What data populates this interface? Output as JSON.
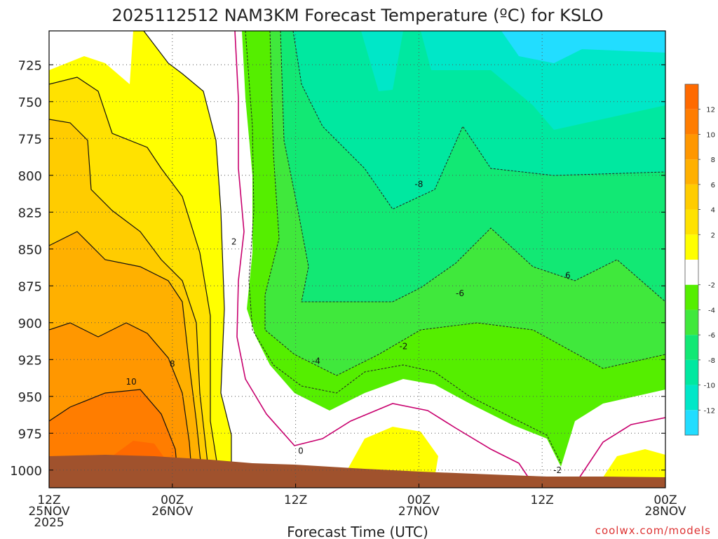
{
  "chart_data": {
    "type": "heatmap",
    "title": "2025112512 NAM3KM Forecast Temperature (ºC) for KSLO",
    "xlabel": "Forecast Time (UTC)",
    "ylabel": "",
    "y_scale": "pressure (inverted)",
    "ylim": [
      1012,
      702
    ],
    "y_ticks": [
      {
        "value": 725,
        "label": "725"
      },
      {
        "value": 750,
        "label": "750"
      },
      {
        "value": 775,
        "label": "775"
      },
      {
        "value": 800,
        "label": "800"
      },
      {
        "value": 825,
        "label": "825"
      },
      {
        "value": 850,
        "label": "850"
      },
      {
        "value": 875,
        "label": "875"
      },
      {
        "value": 900,
        "label": "900"
      },
      {
        "value": 925,
        "label": "925"
      },
      {
        "value": 950,
        "label": "950"
      },
      {
        "value": 975,
        "label": "975"
      },
      {
        "value": 1000,
        "label": "1000"
      }
    ],
    "x_ticks": [
      {
        "time": "2025-11-25T12:00Z",
        "line1": "12Z",
        "line2": "25NOV",
        "line3": "2025"
      },
      {
        "time": "2025-11-26T00:00Z",
        "line1": "00Z",
        "line2": "26NOV",
        "line3": ""
      },
      {
        "time": "2025-11-26T12:00Z",
        "line1": "12Z",
        "line2": "",
        "line3": ""
      },
      {
        "time": "2025-11-27T00:00Z",
        "line1": "00Z",
        "line2": "27NOV",
        "line3": ""
      },
      {
        "time": "2025-11-27T12:00Z",
        "line1": "12Z",
        "line2": "",
        "line3": ""
      },
      {
        "time": "2025-11-28T00:00Z",
        "line1": "00Z",
        "line2": "28NOV",
        "line3": ""
      }
    ],
    "grid": true,
    "colorbar": {
      "placement": "right",
      "colors": [
        "#22ddff",
        "#00e7c8",
        "#00e8a0",
        "#12e874",
        "#40e83c",
        "#55ee00",
        "#ffffff",
        "#ffff00",
        "#ffe200",
        "#ffcc00",
        "#ffb000",
        "#ff9700",
        "#ff7d00",
        "#ff6a00"
      ],
      "labels": [
        "-12",
        "-10",
        "-8",
        "-6",
        "-4",
        "-2",
        "2",
        "4",
        "6",
        "8",
        "10",
        "12"
      ]
    },
    "contour_labels": [
      {
        "text": "10",
        "time": "2025-11-25T20:00Z",
        "p": 940
      },
      {
        "text": "8",
        "time": "2025-11-26T00:00Z",
        "p": 928
      },
      {
        "text": "2",
        "time": "2025-11-26T06:00Z",
        "p": 845
      },
      {
        "text": "0",
        "time": "2025-11-26T12:30Z",
        "p": 987
      },
      {
        "text": "-4",
        "time": "2025-11-26T14:00Z",
        "p": 926
      },
      {
        "text": "-2",
        "time": "2025-11-26T22:30Z",
        "p": 916
      },
      {
        "text": "-8",
        "time": "2025-11-27T00:00Z",
        "p": 806
      },
      {
        "text": "-6",
        "time": "2025-11-27T04:00Z",
        "p": 880
      },
      {
        "text": "6",
        "time": "2025-11-27T14:30Z",
        "p": 868
      },
      {
        "text": "-2",
        "time": "2025-11-27T13:30Z",
        "p": 1000
      }
    ]
  },
  "credit": "coolwx.com/models"
}
